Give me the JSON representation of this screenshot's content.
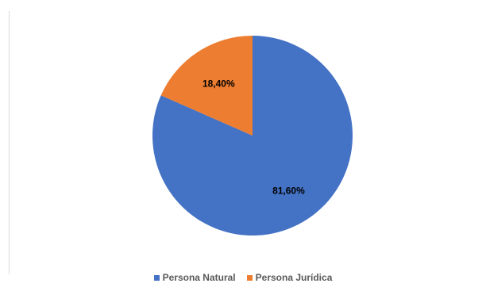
{
  "chart_data": {
    "type": "pie",
    "categories": [
      "Persona Natural",
      "Persona Jurídica"
    ],
    "values": [
      81.6,
      18.4
    ],
    "data_labels": [
      "81,60%",
      "18,40%"
    ],
    "colors": [
      "#4472C4",
      "#ED7D31"
    ],
    "title": "",
    "legend_position": "bottom",
    "start_angle": "top-clockwise"
  },
  "legend": {
    "items": [
      {
        "label": "Persona Natural",
        "color": "#4472C4"
      },
      {
        "label": "Persona Jurídica",
        "color": "#ED7D31"
      }
    ]
  }
}
